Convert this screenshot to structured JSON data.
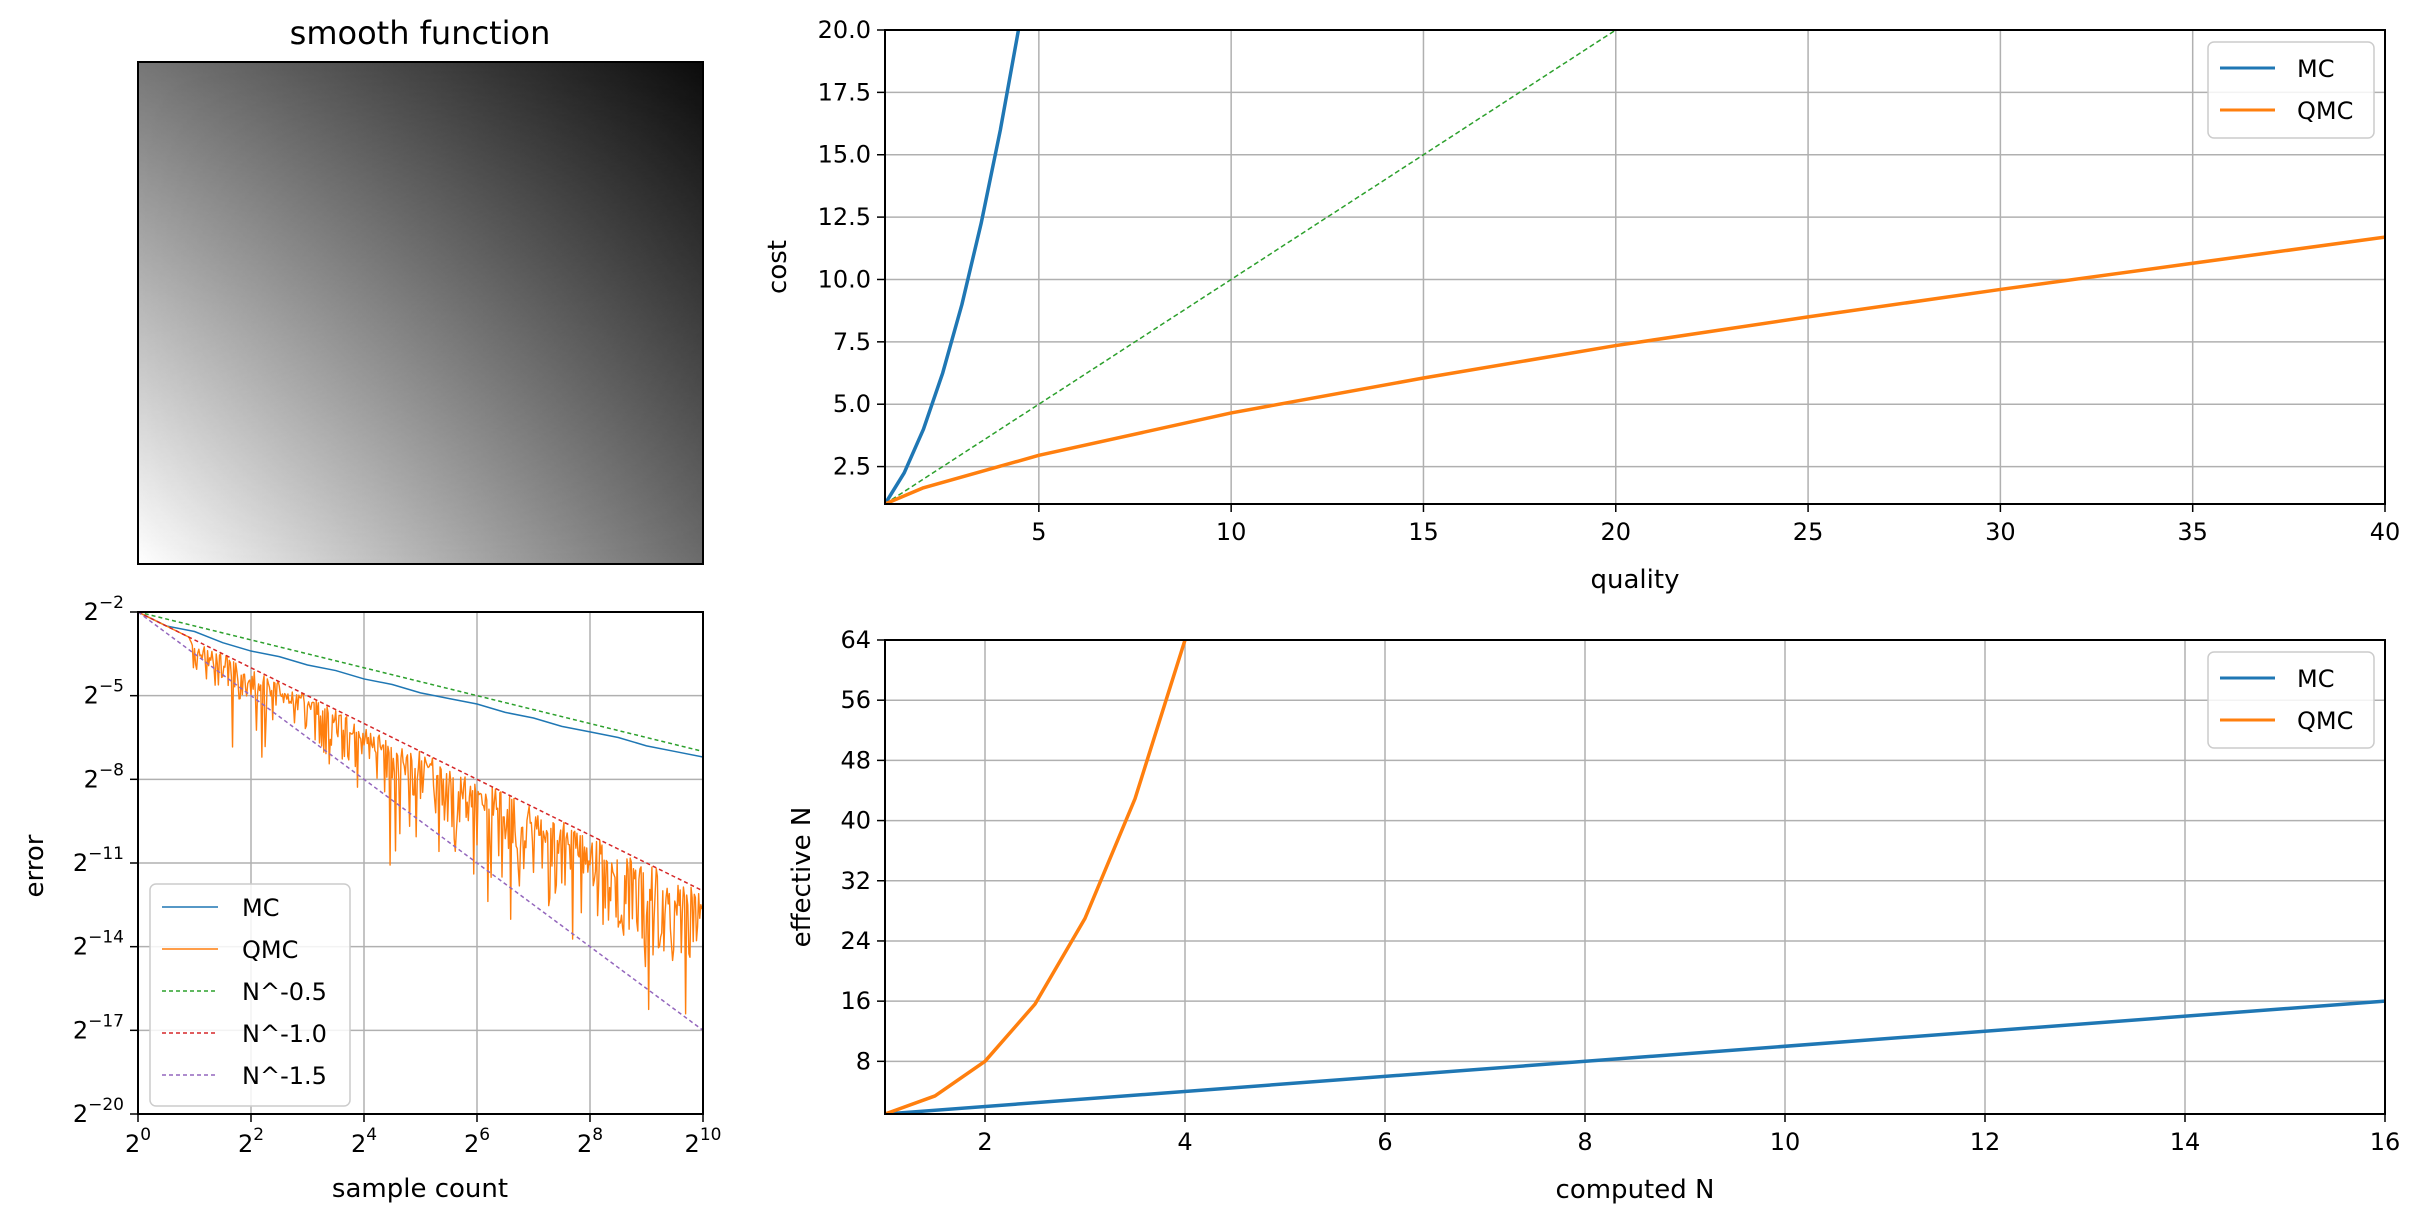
{
  "chart_data": [
    {
      "id": "heatmap",
      "type": "heatmap",
      "title": "smooth function",
      "gradient": {
        "top_left": "#777777",
        "top_right": "#0c0c0c",
        "bottom_left": "#ffffff",
        "bottom_right": "#6c6c6c"
      }
    },
    {
      "id": "cost",
      "type": "line",
      "xlabel": "quality",
      "ylabel": "cost",
      "xlim": [
        1,
        40
      ],
      "ylim": [
        1,
        20
      ],
      "xticks": [
        5,
        10,
        15,
        20,
        25,
        30,
        35,
        40
      ],
      "yticks": [
        2.5,
        5.0,
        7.5,
        10.0,
        12.5,
        15.0,
        17.5,
        20.0
      ],
      "ytick_labels": [
        "2.5",
        "5.0",
        "7.5",
        "10.0",
        "12.5",
        "15.0",
        "17.5",
        "20.0"
      ],
      "grid": true,
      "legend": {
        "placement": "top-right"
      },
      "series": [
        {
          "name": "MC",
          "color": "#1f77b4",
          "x": [
            1,
            1.5,
            2,
            2.5,
            3,
            3.5,
            4,
            4.47
          ],
          "y": [
            1,
            2.25,
            4,
            6.25,
            9,
            12.25,
            16,
            20
          ]
        },
        {
          "name": "QMC",
          "color": "#ff7f0e",
          "x": [
            1,
            2,
            5,
            10,
            15,
            20,
            25,
            30,
            35,
            40
          ],
          "y": [
            1,
            1.65,
            2.95,
            4.65,
            6.05,
            7.35,
            8.5,
            9.6,
            10.65,
            11.7
          ]
        }
      ],
      "reference_lines": [
        {
          "color": "#2ca02c",
          "dashed": true,
          "x": [
            1,
            20
          ],
          "y": [
            1,
            20
          ]
        }
      ]
    },
    {
      "id": "error",
      "type": "line",
      "xlabel": "sample count",
      "ylabel": "error",
      "xscale": "log2",
      "yscale": "log2",
      "xlim_exp": [
        0,
        10
      ],
      "ylim_exp": [
        -20,
        -2
      ],
      "xtick_exps": [
        0,
        2,
        4,
        6,
        8,
        10
      ],
      "ytick_exps": [
        -2,
        -5,
        -8,
        -11,
        -14,
        -17,
        -20
      ],
      "grid": true,
      "legend": {
        "placement": "bottom-left"
      },
      "series": [
        {
          "name": "MC",
          "color": "#1f77b4",
          "style": "thin",
          "x_exp": [
            0,
            0.5,
            1,
            1.5,
            2,
            2.5,
            3,
            3.5,
            4,
            4.5,
            5,
            5.5,
            6,
            6.5,
            7,
            7.5,
            8,
            8.5,
            9,
            9.5,
            10
          ],
          "y_exp": [
            -2,
            -2.5,
            -2.7,
            -3.1,
            -3.4,
            -3.6,
            -3.9,
            -4.1,
            -4.4,
            -4.6,
            -4.9,
            -5.1,
            -5.3,
            -5.6,
            -5.8,
            -6.1,
            -6.3,
            -6.5,
            -6.8,
            -7.0,
            -7.2
          ]
        },
        {
          "name": "QMC",
          "color": "#ff7f0e",
          "style": "noisy",
          "slope": -1.0,
          "start_exp": -2
        },
        {
          "name": "N^-0.5",
          "color": "#2ca02c",
          "style": "dashed",
          "slope": -0.5,
          "start_exp": -2
        },
        {
          "name": "N^-1.0",
          "color": "#d62728",
          "style": "dashed",
          "slope": -1.0,
          "start_exp": -2
        },
        {
          "name": "N^-1.5",
          "color": "#9467bd",
          "style": "dashed",
          "slope": -1.5,
          "start_exp": -2
        }
      ]
    },
    {
      "id": "effective",
      "type": "line",
      "xlabel": "computed N",
      "ylabel": "effective N",
      "xlim": [
        1,
        16
      ],
      "ylim": [
        1,
        64
      ],
      "xticks": [
        2,
        4,
        6,
        8,
        10,
        12,
        14,
        16
      ],
      "yticks": [
        8,
        16,
        24,
        32,
        40,
        48,
        56,
        64
      ],
      "grid": true,
      "legend": {
        "placement": "top-right"
      },
      "series": [
        {
          "name": "MC",
          "color": "#1f77b4",
          "x": [
            1,
            16
          ],
          "y": [
            1,
            16
          ]
        },
        {
          "name": "QMC",
          "color": "#ff7f0e",
          "x": [
            1,
            1.5,
            2,
            2.5,
            3,
            3.5,
            4
          ],
          "y": [
            1,
            3.4,
            8,
            15.6,
            27,
            42.9,
            64
          ]
        }
      ]
    }
  ]
}
